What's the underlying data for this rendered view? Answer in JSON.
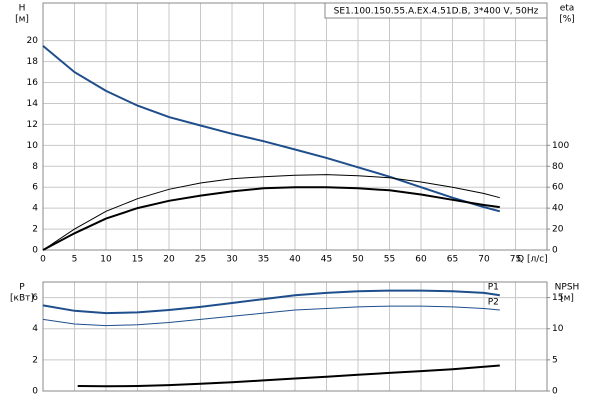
{
  "chart_data": [
    {
      "type": "line",
      "title": "SE1.100.150.55.A.EX.4.51D.B, 3*400 V, 50Hz",
      "xlabel": "Q [л/с]",
      "ylabel": [
        "H",
        "[м]"
      ],
      "y2label": [
        "eta",
        "[%]"
      ],
      "xlim": [
        0,
        80
      ],
      "xticks": [
        0,
        5,
        10,
        15,
        20,
        25,
        30,
        35,
        40,
        45,
        50,
        55,
        60,
        65,
        70,
        75
      ],
      "ylim": [
        0,
        23.6
      ],
      "yticks": [
        0,
        2,
        4,
        6,
        8,
        10,
        12,
        14,
        16,
        18,
        20
      ],
      "y2lim": [
        0,
        236
      ],
      "y2ticks": [
        0,
        20,
        40,
        60,
        80,
        100
      ],
      "grid": true,
      "x": [
        0,
        5,
        10,
        15,
        20,
        25,
        30,
        35,
        40,
        45,
        50,
        55,
        60,
        65,
        70,
        72.5
      ],
      "series": [
        {
          "color": "#1f4e8c",
          "width": 2,
          "values": [
            19.5,
            17,
            15.2,
            13.8,
            12.7,
            11.9,
            11.1,
            10.4,
            9.6,
            8.8,
            7.9,
            7.0,
            6.0,
            5.0,
            4.1,
            3.7
          ]
        },
        {
          "color": "#000000",
          "width": 2,
          "axis": "y2",
          "values": [
            0,
            16,
            30,
            40,
            47,
            52,
            56,
            59,
            60,
            60,
            59,
            57,
            53,
            48,
            43,
            41
          ]
        },
        {
          "color": "#000000",
          "width": 1,
          "axis": "y2",
          "values": [
            0,
            20,
            37,
            49,
            58,
            64,
            68,
            70,
            71.5,
            72,
            71,
            69,
            65,
            60,
            54,
            50
          ]
        }
      ]
    },
    {
      "type": "line",
      "ylabel": [
        "P",
        "[кВт]"
      ],
      "y2label": [
        "NPSH",
        "[м]"
      ],
      "xlim": [
        0,
        80
      ],
      "xticks": [
        0,
        5,
        10,
        15,
        20,
        25,
        30,
        35,
        40,
        45,
        50,
        55,
        60,
        65,
        70,
        75
      ],
      "ylim": [
        0,
        7
      ],
      "yticks": [
        0,
        2,
        4,
        6
      ],
      "y2lim": [
        0,
        17.5
      ],
      "y2ticks": [
        0,
        5,
        10,
        15
      ],
      "grid": true,
      "x": [
        0,
        5,
        10,
        15,
        20,
        25,
        30,
        35,
        40,
        45,
        50,
        55,
        60,
        65,
        70,
        72.5
      ],
      "series": [
        {
          "name": "P1",
          "color": "#1f4e8c",
          "width": 2,
          "values": [
            5.5,
            5.15,
            5.0,
            5.05,
            5.2,
            5.4,
            5.65,
            5.9,
            6.15,
            6.3,
            6.4,
            6.45,
            6.45,
            6.4,
            6.3,
            6.15
          ]
        },
        {
          "name": "P2",
          "color": "#1f4e8c",
          "width": 1,
          "values": [
            4.6,
            4.3,
            4.2,
            4.25,
            4.4,
            4.6,
            4.8,
            5.0,
            5.2,
            5.3,
            5.4,
            5.45,
            5.45,
            5.4,
            5.3,
            5.2
          ]
        },
        {
          "color": "#000000",
          "width": 2,
          "axis": "y2",
          "x": [
            5.5,
            10,
            15,
            20,
            25,
            30,
            35,
            40,
            45,
            50,
            55,
            60,
            65,
            70,
            72.5
          ],
          "values": [
            0.8,
            0.75,
            0.8,
            0.95,
            1.15,
            1.4,
            1.7,
            2.0,
            2.3,
            2.6,
            2.9,
            3.2,
            3.5,
            3.9,
            4.1
          ]
        }
      ]
    }
  ]
}
